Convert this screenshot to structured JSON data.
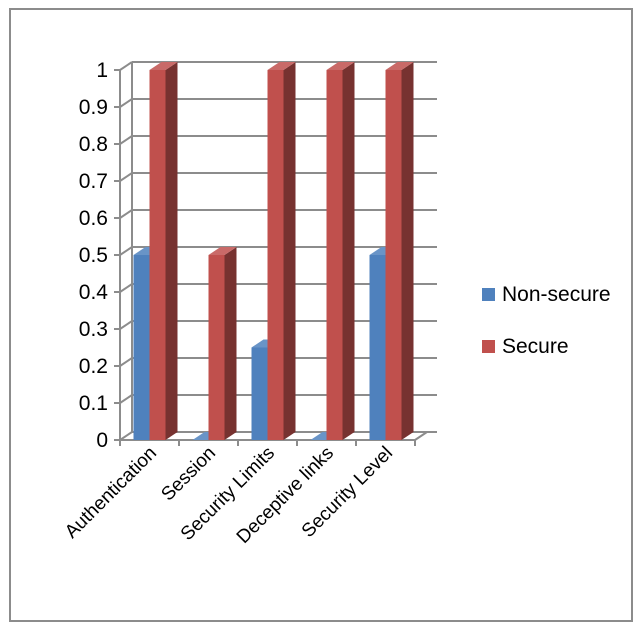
{
  "chart_data": {
    "type": "bar",
    "categories": [
      "Authentication",
      "Session",
      "Security Limits",
      "Deceptive links",
      "Security Level"
    ],
    "series": [
      {
        "name": "Non-secure",
        "color": "#4F81BD",
        "values": [
          0.5,
          0,
          0.25,
          0,
          0.5
        ]
      },
      {
        "name": "Secure",
        "color": "#C0504D",
        "values": [
          1,
          0.5,
          1,
          1,
          1
        ]
      }
    ],
    "title": "",
    "xlabel": "",
    "ylabel": "",
    "ylim": [
      0,
      1
    ],
    "yticks": [
      "0",
      "0.1",
      "0.2",
      "0.3",
      "0.4",
      "0.5",
      "0.6",
      "0.7",
      "0.8",
      "0.9",
      "1"
    ],
    "grid": true,
    "legend_position": "right",
    "style": "3d-clustered-column"
  }
}
